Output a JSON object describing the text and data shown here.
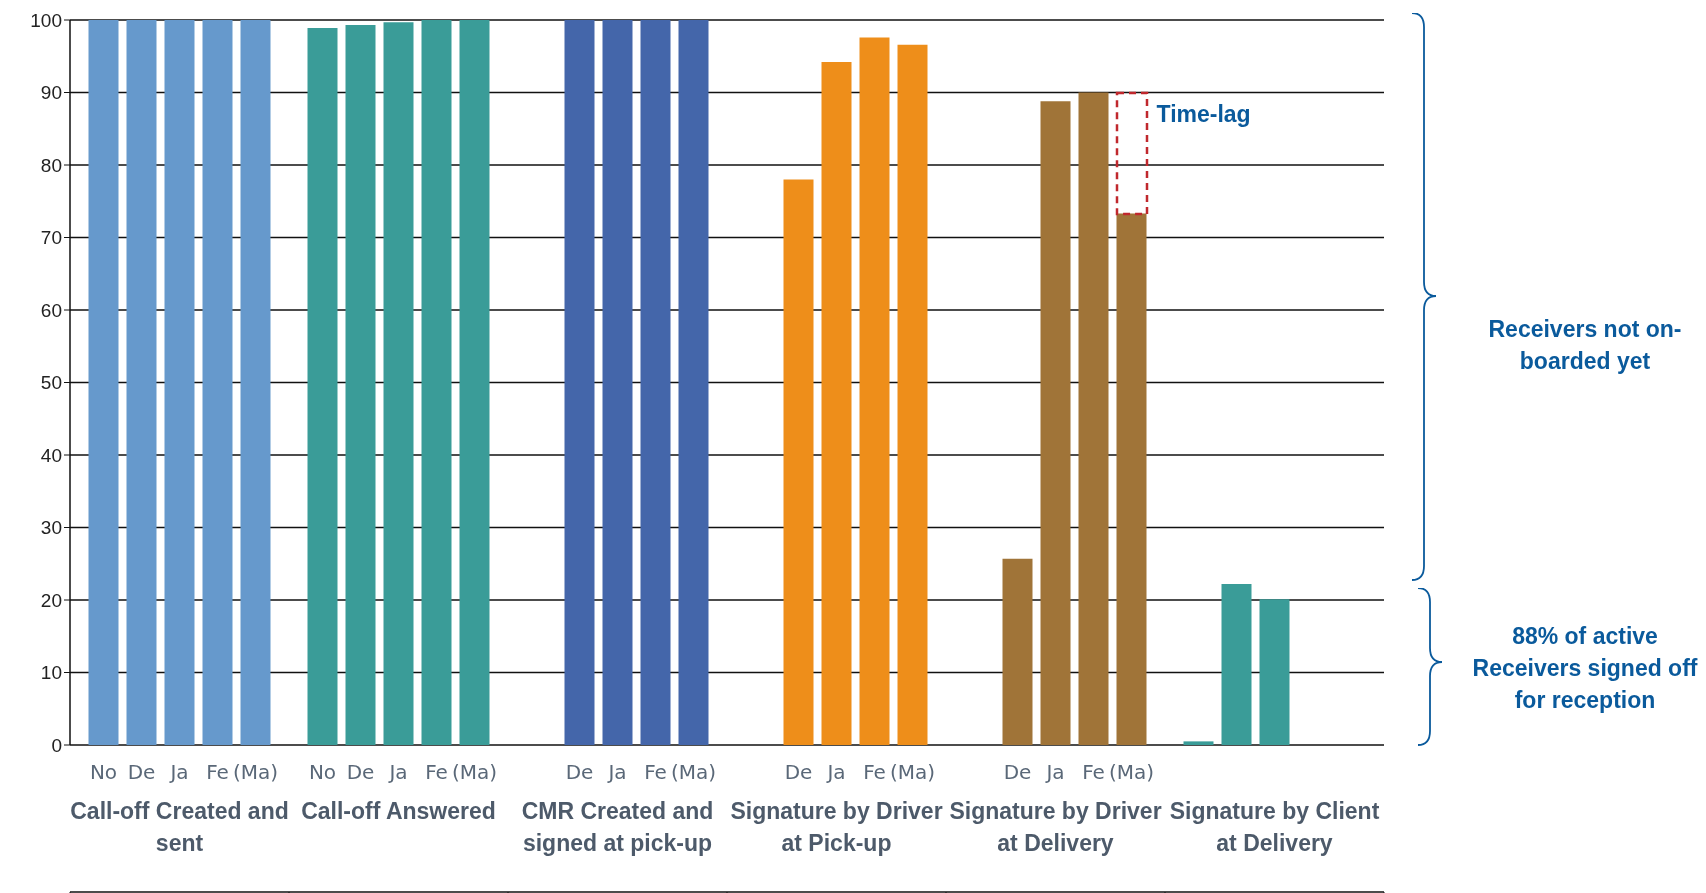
{
  "chart_data": {
    "type": "bar",
    "categories": [
      "No",
      "De",
      "Ja",
      "Fe",
      "(Ma)",
      "No",
      "De",
      "Ja",
      "Fe",
      "(Ma)",
      "De",
      "Ja",
      "Fe",
      "(Ma)",
      "De",
      "Ja",
      "Fe",
      "(Ma)",
      "De",
      "Ja",
      "Fe",
      "(Ma)",
      null,
      null,
      null
    ],
    "series": [
      {
        "name": "Call-off Created and sent",
        "color": "#6699cc",
        "values": [
          100,
          100,
          100,
          100,
          100,
          null,
          null,
          null,
          null,
          null,
          null,
          null,
          null,
          null,
          null,
          null,
          null,
          null,
          null,
          null,
          null,
          null,
          null,
          null,
          null
        ]
      },
      {
        "name": "Call-off Answered",
        "color": "#3a9c98",
        "values": [
          null,
          null,
          null,
          null,
          null,
          98.9,
          99.3,
          99.7,
          100,
          100,
          null,
          null,
          null,
          null,
          null,
          null,
          null,
          null,
          null,
          null,
          null,
          null,
          null,
          null,
          null
        ]
      },
      {
        "name": "CMR Created and signed at pick-up",
        "color": "#4466aa",
        "values": [
          null,
          null,
          null,
          null,
          null,
          null,
          null,
          null,
          null,
          null,
          100,
          100,
          100,
          100,
          null,
          null,
          null,
          null,
          null,
          null,
          null,
          null,
          null,
          null,
          null
        ]
      },
      {
        "name": "Signature by Driver at Pick-up",
        "color": "#ee8e1a",
        "values": [
          null,
          null,
          null,
          null,
          null,
          null,
          null,
          null,
          null,
          null,
          null,
          null,
          null,
          null,
          78,
          94.2,
          97.6,
          96.6,
          null,
          null,
          null,
          null,
          null,
          null,
          null
        ]
      },
      {
        "name": "Signature by Driver at Delivery",
        "color": "#a07438",
        "values": [
          null,
          null,
          null,
          null,
          null,
          null,
          null,
          null,
          null,
          null,
          null,
          null,
          null,
          null,
          null,
          null,
          null,
          null,
          25.7,
          88.8,
          90,
          73.3,
          null,
          null,
          null
        ]
      },
      {
        "name": "Signature by Client at Delivery",
        "color": "#3a9c98",
        "values": [
          null,
          null,
          null,
          null,
          null,
          null,
          null,
          null,
          null,
          null,
          null,
          null,
          null,
          null,
          null,
          null,
          null,
          null,
          null,
          null,
          null,
          null,
          0.5,
          22.2,
          20.1
        ]
      }
    ],
    "ylim": [
      0,
      100
    ],
    "yticks": [
      0,
      10,
      20,
      30,
      40,
      50,
      60,
      70,
      80,
      90,
      100
    ],
    "grid": "y",
    "annotations": [
      "Time-lag",
      "Receivers not on-boarded yet",
      "88% of active Receivers signed off for reception"
    ]
  }
}
